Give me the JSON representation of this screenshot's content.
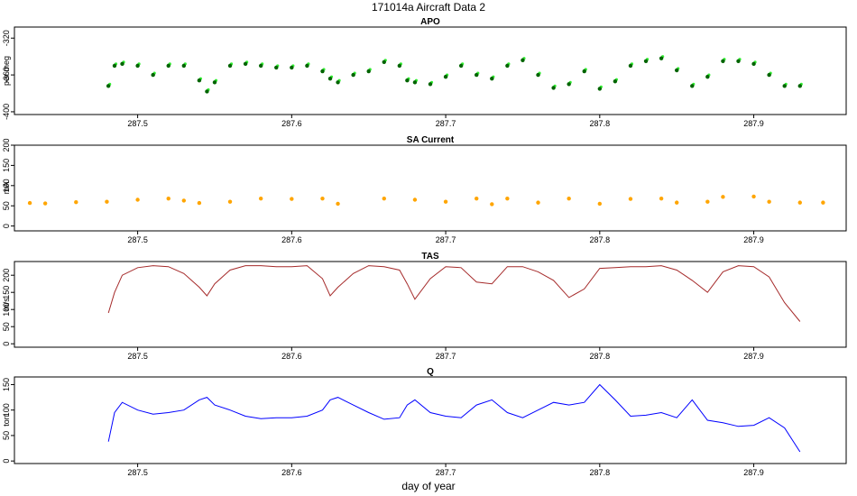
{
  "chart_data": {
    "type": "line",
    "title": "171014a   Aircraft Data 2",
    "xlabel": "day of year",
    "xlim": [
      287.42,
      287.96
    ],
    "xticks": [
      "287.5",
      "287.6",
      "287.7",
      "287.8",
      "287.9"
    ],
    "panels": [
      {
        "name": "APO",
        "ylabel": "per meg",
        "style": "points",
        "color": "#006400",
        "color2": "#33ee33",
        "ylim": [
          -403,
          -308
        ],
        "yticks": [
          "-320",
          "-360",
          "-400"
        ],
        "x": [
          287.481,
          287.485,
          287.49,
          287.5,
          287.51,
          287.52,
          287.53,
          287.54,
          287.545,
          287.55,
          287.56,
          287.57,
          287.58,
          287.59,
          287.6,
          287.61,
          287.62,
          287.625,
          287.63,
          287.64,
          287.65,
          287.66,
          287.67,
          287.675,
          287.68,
          287.69,
          287.7,
          287.71,
          287.72,
          287.73,
          287.74,
          287.75,
          287.76,
          287.77,
          287.78,
          287.79,
          287.8,
          287.81,
          287.82,
          287.83,
          287.84,
          287.85,
          287.86,
          287.87,
          287.88,
          287.89,
          287.9,
          287.91,
          287.92,
          287.93
        ],
        "y": [
          -372,
          -350,
          -348,
          -350,
          -360,
          -350,
          -350,
          -366,
          -378,
          -368,
          -350,
          -348,
          -350,
          -352,
          -352,
          -350,
          -356,
          -364,
          -368,
          -360,
          -356,
          -346,
          -350,
          -366,
          -368,
          -370,
          -362,
          -350,
          -360,
          -364,
          -350,
          -344,
          -360,
          -374,
          -370,
          -356,
          -375,
          -367,
          -350,
          -345,
          -342,
          -355,
          -372,
          -362,
          -345,
          -345,
          -348,
          -360,
          -372,
          -372
        ]
      },
      {
        "name": "SA Current",
        "ylabel": "mA",
        "style": "points",
        "color": "#ffa500",
        "ylim": [
          -12,
          200
        ],
        "yticks": [
          "0",
          "50",
          "100",
          "150",
          "200"
        ],
        "x": [
          287.43,
          287.44,
          287.46,
          287.48,
          287.5,
          287.52,
          287.53,
          287.54,
          287.56,
          287.58,
          287.6,
          287.62,
          287.63,
          287.66,
          287.68,
          287.7,
          287.72,
          287.73,
          287.74,
          287.76,
          287.78,
          287.8,
          287.82,
          287.84,
          287.85,
          287.87,
          287.88,
          287.9,
          287.91,
          287.93,
          287.945
        ],
        "y": [
          57,
          56,
          59,
          60,
          65,
          68,
          63,
          57,
          60,
          68,
          67,
          68,
          55,
          68,
          65,
          60,
          68,
          54,
          68,
          58,
          68,
          55,
          67,
          68,
          58,
          60,
          72,
          73,
          60,
          58,
          58
        ]
      },
      {
        "name": "TAS",
        "ylabel": "m/s",
        "style": "line",
        "color": "#a52a2a",
        "ylim": [
          -10,
          240
        ],
        "yticks": [
          "0",
          "50",
          "100",
          "150",
          "200"
        ],
        "x": [
          287.481,
          287.485,
          287.49,
          287.5,
          287.51,
          287.52,
          287.53,
          287.54,
          287.545,
          287.55,
          287.56,
          287.57,
          287.58,
          287.59,
          287.6,
          287.61,
          287.62,
          287.625,
          287.63,
          287.64,
          287.65,
          287.66,
          287.67,
          287.675,
          287.68,
          287.69,
          287.7,
          287.71,
          287.72,
          287.73,
          287.74,
          287.75,
          287.76,
          287.77,
          287.78,
          287.79,
          287.8,
          287.81,
          287.82,
          287.83,
          287.84,
          287.85,
          287.86,
          287.87,
          287.88,
          287.89,
          287.9,
          287.91,
          287.92,
          287.93
        ],
        "y": [
          90,
          150,
          200,
          222,
          228,
          225,
          205,
          165,
          140,
          175,
          215,
          228,
          228,
          225,
          225,
          228,
          190,
          140,
          165,
          205,
          228,
          225,
          215,
          175,
          130,
          190,
          225,
          222,
          180,
          175,
          225,
          225,
          210,
          185,
          135,
          160,
          220,
          222,
          225,
          225,
          228,
          215,
          185,
          150,
          210,
          228,
          225,
          195,
          120,
          65
        ]
      },
      {
        "name": "Q",
        "ylabel": "torr",
        "style": "line",
        "color": "#0000ff",
        "ylim": [
          -5,
          165
        ],
        "yticks": [
          "0",
          "50",
          "100",
          "150"
        ],
        "x": [
          287.481,
          287.485,
          287.49,
          287.5,
          287.51,
          287.52,
          287.53,
          287.54,
          287.545,
          287.55,
          287.56,
          287.57,
          287.58,
          287.59,
          287.6,
          287.61,
          287.62,
          287.625,
          287.63,
          287.64,
          287.65,
          287.66,
          287.67,
          287.675,
          287.68,
          287.69,
          287.7,
          287.71,
          287.72,
          287.73,
          287.74,
          287.75,
          287.76,
          287.77,
          287.78,
          287.79,
          287.8,
          287.81,
          287.82,
          287.83,
          287.84,
          287.85,
          287.86,
          287.87,
          287.88,
          287.89,
          287.9,
          287.91,
          287.92,
          287.93
        ],
        "y": [
          38,
          95,
          115,
          100,
          92,
          95,
          100,
          120,
          125,
          110,
          100,
          88,
          83,
          85,
          85,
          88,
          100,
          120,
          125,
          110,
          95,
          82,
          85,
          110,
          120,
          95,
          88,
          85,
          110,
          120,
          95,
          85,
          100,
          115,
          110,
          115,
          150,
          120,
          88,
          90,
          95,
          85,
          120,
          80,
          75,
          68,
          70,
          85,
          65,
          18
        ]
      }
    ]
  }
}
